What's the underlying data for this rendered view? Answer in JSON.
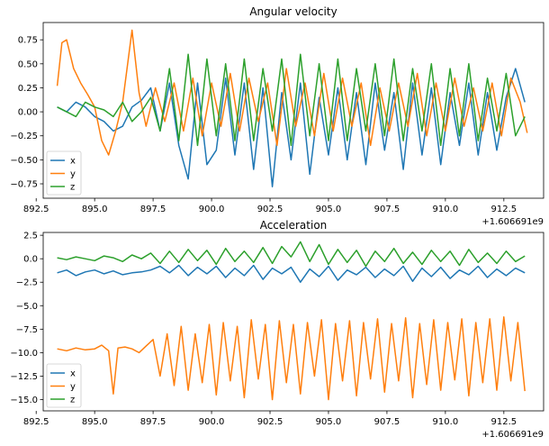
{
  "chart_data": [
    {
      "type": "line",
      "title": "Angular velocity",
      "xlabel": "",
      "ylabel": "",
      "x_offset_label": "+1.606691e9",
      "xlim": [
        892.8,
        914.2
      ],
      "ylim": [
        -0.9,
        0.93
      ],
      "xticks": [
        892.5,
        895.0,
        897.5,
        900.0,
        902.5,
        905.0,
        907.5,
        910.0,
        912.5
      ],
      "xtick_labels": [
        "892.5",
        "895.0",
        "897.5",
        "900.0",
        "902.5",
        "905.0",
        "907.5",
        "910.0",
        "912.5"
      ],
      "yticks": [
        -0.75,
        -0.5,
        -0.25,
        0.0,
        0.25,
        0.5,
        0.75
      ],
      "ytick_labels": [
        "−0.75",
        "−0.50",
        "−0.25",
        "0.00",
        "0.25",
        "0.50",
        "0.75"
      ],
      "grid": false,
      "legend": "lower-left",
      "series": [
        {
          "name": "x",
          "color": "#1f77b4",
          "x": [
            893.4,
            893.8,
            894.2,
            894.6,
            895.0,
            895.4,
            895.8,
            896.2,
            896.6,
            897.0,
            897.4,
            897.8,
            898.2,
            898.6,
            899.0,
            899.4,
            899.8,
            900.2,
            900.6,
            901.0,
            901.4,
            901.8,
            902.2,
            902.6,
            903.0,
            903.4,
            903.8,
            904.2,
            904.6,
            905.0,
            905.4,
            905.8,
            906.2,
            906.6,
            907.0,
            907.4,
            907.8,
            908.2,
            908.6,
            909.0,
            909.4,
            909.8,
            910.2,
            910.6,
            911.0,
            911.4,
            911.8,
            912.2,
            912.6,
            913.0,
            913.4
          ],
          "y": [
            0.05,
            0.0,
            0.1,
            0.05,
            -0.05,
            -0.1,
            -0.2,
            -0.15,
            0.05,
            0.12,
            0.25,
            -0.2,
            0.3,
            -0.35,
            -0.7,
            0.3,
            -0.55,
            -0.4,
            0.35,
            -0.45,
            0.3,
            -0.6,
            0.25,
            -0.78,
            0.2,
            -0.5,
            0.3,
            -0.65,
            0.15,
            -0.45,
            0.25,
            -0.5,
            0.2,
            -0.55,
            0.3,
            -0.4,
            0.2,
            -0.6,
            0.3,
            -0.45,
            0.25,
            -0.55,
            0.2,
            -0.35,
            0.3,
            -0.45,
            0.2,
            -0.4,
            0.15,
            0.45,
            0.1
          ]
        },
        {
          "name": "y",
          "color": "#ff7f0e",
          "x": [
            893.4,
            893.6,
            893.8,
            894.1,
            894.4,
            894.7,
            895.0,
            895.3,
            895.6,
            895.9,
            896.2,
            896.6,
            896.9,
            897.2,
            897.6,
            898.0,
            898.4,
            898.8,
            899.2,
            899.6,
            900.0,
            900.4,
            900.8,
            901.2,
            901.6,
            902.0,
            902.4,
            902.8,
            903.2,
            903.6,
            904.0,
            904.4,
            904.8,
            905.2,
            905.6,
            906.0,
            906.4,
            906.8,
            907.2,
            907.6,
            908.0,
            908.4,
            908.8,
            909.2,
            909.6,
            910.0,
            910.4,
            910.8,
            911.2,
            911.6,
            912.0,
            912.4,
            912.8,
            913.2,
            913.5
          ],
          "y": [
            0.27,
            0.72,
            0.75,
            0.45,
            0.3,
            0.18,
            0.05,
            -0.3,
            -0.45,
            -0.2,
            0.1,
            0.85,
            0.2,
            -0.15,
            0.25,
            -0.1,
            0.3,
            -0.2,
            0.35,
            -0.25,
            0.3,
            -0.15,
            0.4,
            -0.2,
            0.35,
            -0.1,
            0.3,
            -0.35,
            0.45,
            -0.15,
            0.3,
            -0.25,
            0.4,
            -0.2,
            0.35,
            -0.15,
            0.3,
            -0.35,
            0.25,
            -0.2,
            0.3,
            -0.15,
            0.4,
            -0.25,
            0.3,
            -0.2,
            0.35,
            -0.15,
            0.25,
            -0.2,
            0.3,
            -0.25,
            0.35,
            0.1,
            -0.22
          ]
        },
        {
          "name": "z",
          "color": "#2ca02c",
          "x": [
            893.4,
            893.8,
            894.2,
            894.6,
            895.0,
            895.4,
            895.8,
            896.2,
            896.6,
            897.0,
            897.4,
            897.8,
            898.2,
            898.6,
            899.0,
            899.4,
            899.8,
            900.2,
            900.6,
            901.0,
            901.4,
            901.8,
            902.2,
            902.6,
            903.0,
            903.4,
            903.8,
            904.2,
            904.6,
            905.0,
            905.4,
            905.8,
            906.2,
            906.6,
            907.0,
            907.4,
            907.8,
            908.2,
            908.6,
            909.0,
            909.4,
            909.8,
            910.2,
            910.6,
            911.0,
            911.4,
            911.8,
            912.2,
            912.6,
            913.0,
            913.4
          ],
          "y": [
            0.05,
            0.0,
            -0.05,
            0.1,
            0.05,
            0.02,
            -0.05,
            0.1,
            -0.1,
            0.0,
            0.15,
            -0.2,
            0.45,
            -0.3,
            0.6,
            -0.35,
            0.55,
            -0.25,
            0.5,
            -0.3,
            0.55,
            -0.3,
            0.45,
            -0.2,
            0.55,
            -0.35,
            0.6,
            -0.25,
            0.5,
            -0.3,
            0.55,
            -0.3,
            0.45,
            -0.2,
            0.5,
            -0.25,
            0.55,
            -0.3,
            0.45,
            -0.2,
            0.5,
            -0.35,
            0.45,
            -0.25,
            0.5,
            -0.3,
            0.35,
            -0.2,
            0.4,
            -0.25,
            -0.05
          ]
        }
      ]
    },
    {
      "type": "line",
      "title": "Acceleration",
      "xlabel": "",
      "ylabel": "",
      "x_offset_label": "+1.606691e9",
      "xlim": [
        892.8,
        914.2
      ],
      "ylim": [
        -16.2,
        2.8
      ],
      "xticks": [
        892.5,
        895.0,
        897.5,
        900.0,
        902.5,
        905.0,
        907.5,
        910.0,
        912.5
      ],
      "xtick_labels": [
        "892.5",
        "895.0",
        "897.5",
        "900.0",
        "902.5",
        "905.0",
        "907.5",
        "910.0",
        "912.5"
      ],
      "yticks": [
        -15.0,
        -12.5,
        -10.0,
        -7.5,
        -5.0,
        -2.5,
        0.0,
        2.5
      ],
      "ytick_labels": [
        "−15.0",
        "−12.5",
        "−10.0",
        "−7.5",
        "−5.0",
        "−2.5",
        "0.0",
        "2.5"
      ],
      "grid": false,
      "legend": "lower-left",
      "series": [
        {
          "name": "x",
          "color": "#1f77b4",
          "x": [
            893.4,
            893.8,
            894.2,
            894.6,
            895.0,
            895.4,
            895.8,
            896.2,
            896.6,
            897.0,
            897.4,
            897.8,
            898.2,
            898.6,
            899.0,
            899.4,
            899.8,
            900.2,
            900.6,
            901.0,
            901.4,
            901.8,
            902.2,
            902.6,
            903.0,
            903.4,
            903.8,
            904.2,
            904.6,
            905.0,
            905.4,
            905.8,
            906.2,
            906.6,
            907.0,
            907.4,
            907.8,
            908.2,
            908.6,
            909.0,
            909.4,
            909.8,
            910.2,
            910.6,
            911.0,
            911.4,
            911.8,
            912.2,
            912.6,
            913.0,
            913.4
          ],
          "y": [
            -1.5,
            -1.2,
            -1.8,
            -1.4,
            -1.2,
            -1.6,
            -1.3,
            -1.7,
            -1.5,
            -1.4,
            -1.2,
            -0.8,
            -1.5,
            -0.7,
            -1.8,
            -0.9,
            -1.6,
            -0.8,
            -2.0,
            -1.0,
            -1.8,
            -0.7,
            -2.2,
            -1.0,
            -1.6,
            -0.9,
            -2.5,
            -1.1,
            -1.9,
            -0.8,
            -2.3,
            -1.2,
            -1.7,
            -0.9,
            -2.0,
            -1.1,
            -1.8,
            -0.8,
            -2.4,
            -1.0,
            -1.9,
            -0.9,
            -2.1,
            -1.2,
            -1.7,
            -0.8,
            -2.0,
            -1.1,
            -1.8,
            -1.0,
            -1.5
          ]
        },
        {
          "name": "y",
          "color": "#ff7f0e",
          "x": [
            893.4,
            893.8,
            894.2,
            894.6,
            895.0,
            895.3,
            895.6,
            895.8,
            896.0,
            896.3,
            896.6,
            896.9,
            897.2,
            897.5,
            897.8,
            898.1,
            898.4,
            898.7,
            899.0,
            899.3,
            899.6,
            899.9,
            900.2,
            900.5,
            900.8,
            901.1,
            901.4,
            901.7,
            902.0,
            902.3,
            902.6,
            902.9,
            903.2,
            903.5,
            903.8,
            904.1,
            904.4,
            904.7,
            905.0,
            905.3,
            905.6,
            905.9,
            906.2,
            906.5,
            906.8,
            907.1,
            907.4,
            907.7,
            908.0,
            908.3,
            908.6,
            908.9,
            909.2,
            909.5,
            909.8,
            910.1,
            910.4,
            910.7,
            911.0,
            911.3,
            911.6,
            911.9,
            912.2,
            912.5,
            912.8,
            913.1,
            913.4
          ],
          "y": [
            -9.6,
            -9.8,
            -9.5,
            -9.7,
            -9.6,
            -9.2,
            -9.8,
            -14.4,
            -9.5,
            -9.4,
            -9.6,
            -10.0,
            -9.3,
            -8.6,
            -12.5,
            -8.0,
            -13.5,
            -7.2,
            -14.0,
            -8.0,
            -13.2,
            -7.0,
            -14.5,
            -6.8,
            -13.0,
            -7.2,
            -14.8,
            -6.5,
            -12.8,
            -7.0,
            -15.0,
            -6.6,
            -13.2,
            -7.0,
            -14.4,
            -6.8,
            -12.5,
            -6.5,
            -15.0,
            -6.9,
            -13.0,
            -6.6,
            -14.6,
            -6.8,
            -12.8,
            -6.4,
            -14.2,
            -6.9,
            -13.0,
            -6.3,
            -14.8,
            -6.9,
            -13.4,
            -6.5,
            -14.0,
            -6.8,
            -12.9,
            -6.4,
            -14.6,
            -6.8,
            -13.2,
            -6.4,
            -14.0,
            -6.2,
            -13.0,
            -6.8,
            -14.1
          ]
        },
        {
          "name": "z",
          "color": "#2ca02c",
          "x": [
            893.4,
            893.8,
            894.2,
            894.6,
            895.0,
            895.4,
            895.8,
            896.2,
            896.6,
            897.0,
            897.4,
            897.8,
            898.2,
            898.6,
            899.0,
            899.4,
            899.8,
            900.2,
            900.6,
            901.0,
            901.4,
            901.8,
            902.2,
            902.6,
            903.0,
            903.4,
            903.8,
            904.2,
            904.6,
            905.0,
            905.4,
            905.8,
            906.2,
            906.6,
            907.0,
            907.4,
            907.8,
            908.2,
            908.6,
            909.0,
            909.4,
            909.8,
            910.2,
            910.6,
            911.0,
            911.4,
            911.8,
            912.2,
            912.6,
            913.0,
            913.4
          ],
          "y": [
            0.1,
            -0.1,
            0.2,
            0.0,
            -0.2,
            0.3,
            0.1,
            -0.3,
            0.4,
            0.0,
            0.6,
            -0.5,
            0.8,
            -0.4,
            1.0,
            -0.2,
            0.9,
            -0.6,
            1.1,
            -0.3,
            0.8,
            -0.4,
            1.2,
            -0.5,
            1.3,
            0.2,
            1.8,
            -0.3,
            1.5,
            -0.6,
            1.0,
            -0.4,
            0.9,
            -0.8,
            0.8,
            -0.3,
            1.1,
            -0.5,
            0.7,
            -0.6,
            0.9,
            -0.3,
            0.8,
            -0.7,
            1.0,
            -0.4,
            0.6,
            -0.5,
            0.8,
            -0.3,
            0.3
          ]
        }
      ]
    }
  ]
}
